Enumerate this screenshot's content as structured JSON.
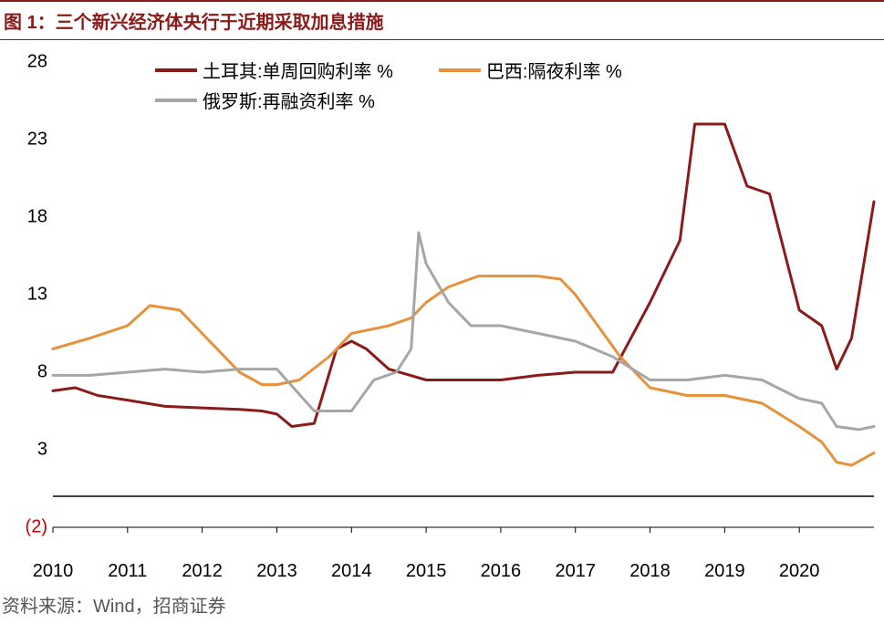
{
  "title": "图 1：三个新兴经济体央行于近期采取加息措施",
  "source": "资料来源：Wind，招商证券",
  "chart": {
    "type": "line",
    "background_color": "#ffffff",
    "grid_color": "#e0e0e0",
    "x_axis_color": "#000000",
    "ylim": [
      -2,
      28
    ],
    "yticks": [
      -2,
      3,
      8,
      13,
      18,
      23,
      28
    ],
    "ytick_labels": [
      "(2)",
      "3",
      "8",
      "13",
      "18",
      "23",
      "28"
    ],
    "xlim": [
      2010,
      2021
    ],
    "xticks": [
      2010,
      2011,
      2012,
      2013,
      2014,
      2015,
      2016,
      2017,
      2018,
      2019,
      2020
    ],
    "tick_fontsize": 20,
    "legend": {
      "position": "top",
      "fontsize": 20,
      "items": [
        {
          "label": "土耳其:单周回购利率 %",
          "color": "#8b1a1a"
        },
        {
          "label": "巴西:隔夜利率 %",
          "color": "#e6913c"
        },
        {
          "label": "俄罗斯:再融资利率 %",
          "color": "#a6a6a6"
        }
      ]
    },
    "series": [
      {
        "name": "turkey",
        "label": "土耳其:单周回购利率 %",
        "color": "#8b1a1a",
        "line_width": 3,
        "x": [
          2010.0,
          2010.3,
          2010.6,
          2011.0,
          2011.5,
          2012.0,
          2012.5,
          2012.8,
          2013.0,
          2013.2,
          2013.5,
          2013.8,
          2014.0,
          2014.2,
          2014.5,
          2015.0,
          2015.5,
          2016.0,
          2016.5,
          2017.0,
          2017.5,
          2018.0,
          2018.4,
          2018.6,
          2019.0,
          2019.3,
          2019.6,
          2020.0,
          2020.3,
          2020.5,
          2020.7,
          2021.0
        ],
        "y": [
          6.8,
          7.0,
          6.5,
          6.2,
          5.8,
          5.7,
          5.6,
          5.5,
          5.3,
          4.5,
          4.7,
          9.5,
          10.0,
          9.5,
          8.2,
          7.5,
          7.5,
          7.5,
          7.8,
          8.0,
          8.0,
          12.5,
          16.5,
          24.0,
          24.0,
          20.0,
          19.5,
          12.0,
          11.0,
          8.2,
          10.2,
          19.0
        ]
      },
      {
        "name": "brazil",
        "label": "巴西:隔夜利率 %",
        "color": "#e6913c",
        "line_width": 3,
        "x": [
          2010.0,
          2010.5,
          2011.0,
          2011.3,
          2011.7,
          2012.0,
          2012.3,
          2012.5,
          2012.8,
          2013.0,
          2013.3,
          2013.7,
          2014.0,
          2014.5,
          2014.8,
          2015.0,
          2015.3,
          2015.7,
          2016.0,
          2016.5,
          2016.8,
          2017.0,
          2017.3,
          2017.6,
          2018.0,
          2018.5,
          2019.0,
          2019.5,
          2020.0,
          2020.3,
          2020.5,
          2020.7,
          2021.0
        ],
        "y": [
          9.5,
          10.2,
          11.0,
          12.3,
          12.0,
          10.5,
          9.0,
          8.0,
          7.2,
          7.2,
          7.5,
          9.0,
          10.5,
          11.0,
          11.5,
          12.5,
          13.5,
          14.2,
          14.2,
          14.2,
          14.0,
          13.0,
          11.0,
          9.0,
          7.0,
          6.5,
          6.5,
          6.0,
          4.5,
          3.5,
          2.2,
          2.0,
          2.8
        ]
      },
      {
        "name": "russia",
        "label": "俄罗斯:再融资利率 %",
        "color": "#a6a6a6",
        "line_width": 3,
        "x": [
          2010.0,
          2010.5,
          2011.0,
          2011.5,
          2012.0,
          2012.5,
          2012.8,
          2013.0,
          2013.5,
          2014.0,
          2014.3,
          2014.6,
          2014.8,
          2014.9,
          2015.0,
          2015.3,
          2015.6,
          2016.0,
          2016.5,
          2017.0,
          2017.5,
          2018.0,
          2018.5,
          2019.0,
          2019.5,
          2020.0,
          2020.3,
          2020.5,
          2020.8,
          2021.0
        ],
        "y": [
          7.8,
          7.8,
          8.0,
          8.2,
          8.0,
          8.2,
          8.2,
          8.2,
          5.5,
          5.5,
          7.5,
          8.0,
          9.5,
          17.0,
          15.0,
          12.5,
          11.0,
          11.0,
          10.5,
          10.0,
          9.0,
          7.5,
          7.5,
          7.8,
          7.5,
          6.3,
          6.0,
          4.5,
          4.3,
          4.5
        ]
      }
    ]
  }
}
